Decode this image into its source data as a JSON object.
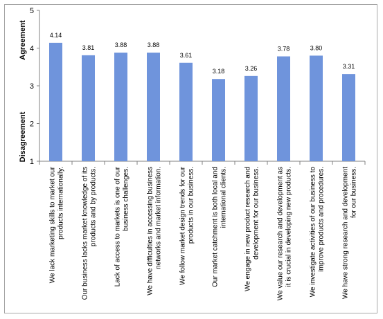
{
  "chart_data": {
    "type": "bar",
    "categories": [
      [
        "We lack marketing skills to market our",
        "products internationally."
      ],
      [
        "Our business lacks market knowledge of its",
        "products and by products."
      ],
      [
        "Lack of access to markets is one of our",
        "business challenges."
      ],
      [
        "We have difficulties in accessing business",
        "networks and market information."
      ],
      [
        "We follow market design trends for our",
        "products in our business."
      ],
      [
        "Our market catchment is both local and",
        "international clients."
      ],
      [
        "We engage in new product research and",
        "development for our business."
      ],
      [
        "We value our research and development as",
        "it is crucial in developing new products."
      ],
      [
        "We investigate activities of our business to",
        "improve products and procedures."
      ],
      [
        "We have strong research and development",
        "for our business."
      ]
    ],
    "values": [
      4.14,
      3.81,
      3.88,
      3.88,
      3.61,
      3.18,
      3.26,
      3.78,
      3.8,
      3.31
    ],
    "data_labels": [
      "4.14",
      "3.81",
      "3.88",
      "3.88",
      "3.61",
      "3.18",
      "3.26",
      "3.78",
      "3.80",
      "3.31"
    ],
    "ylim": [
      1,
      5
    ],
    "yticks": [
      "1",
      "2",
      "3",
      "4",
      "5"
    ],
    "ylabel_top": "Agreement",
    "ylabel_bottom": "Disagreement",
    "bar_color": "#6f94dc",
    "grid": false
  }
}
